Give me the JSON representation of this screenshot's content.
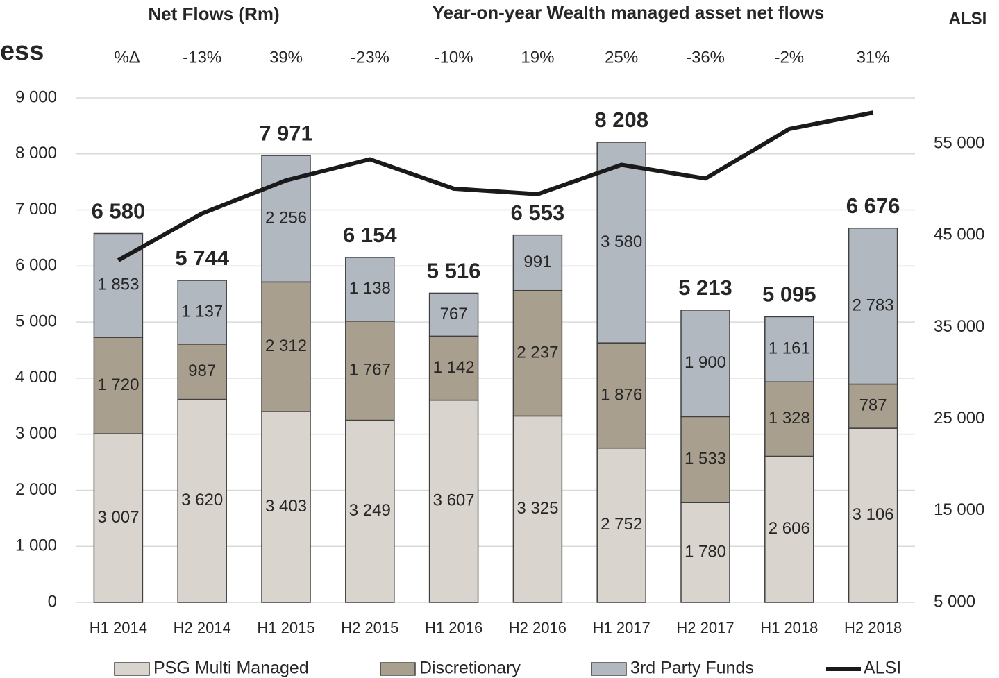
{
  "chart_data": {
    "type": "stacked_bar_line",
    "cut_text": "ess",
    "title_left": "Net Flows (Rm)",
    "title": "Year-on-year Wealth managed asset net flows",
    "y2_title": "ALSI",
    "yoy_label": "%Δ",
    "yoy_change": [
      null,
      -13,
      39,
      -23,
      -10,
      19,
      25,
      -36,
      -2,
      31
    ],
    "yoy_change_labels": [
      null,
      "-13%",
      "39%",
      "-23%",
      "-10%",
      "19%",
      "25%",
      "-36%",
      "-2%",
      "31%"
    ],
    "negative_color": "#ff0000",
    "categories": [
      "H1 2014",
      "H2 2014",
      "H1 2015",
      "H2 2015",
      "H1 2016",
      "H2 2016",
      "H1 2017",
      "H2 2017",
      "H1 2018",
      "H2 2018"
    ],
    "series": [
      {
        "name": "PSG Multi Managed",
        "color": "#d9d5ce",
        "label_color": "#404040",
        "values": [
          3007,
          3620,
          3403,
          3249,
          3607,
          3325,
          2752,
          1780,
          2606,
          3106
        ],
        "value_labels": [
          "3 007",
          "3 620",
          "3 403",
          "3 249",
          "3 607",
          "3 325",
          "2 752",
          "1 780",
          "2 606",
          "3 106"
        ]
      },
      {
        "name": "Discretionary",
        "color": "#a89f8e",
        "label_color": "#ffffff",
        "values": [
          1720,
          987,
          2312,
          1767,
          1142,
          2237,
          1876,
          1533,
          1328,
          787
        ],
        "value_labels": [
          "1 720",
          "987",
          "2 312",
          "1 767",
          "1 142",
          "2 237",
          "1 876",
          "1 533",
          "1 328",
          "787"
        ]
      },
      {
        "name": "3rd Party Funds",
        "color": "#b1b8c0",
        "label_color": "#ffffff",
        "values": [
          1853,
          1137,
          2256,
          1138,
          767,
          991,
          3580,
          1900,
          1161,
          2783
        ],
        "value_labels": [
          "1 853",
          "1 137",
          "2 256",
          "1 138",
          "767",
          "991",
          "3 580",
          "1 900",
          "1 161",
          "2 783"
        ]
      },
      {
        "name": "ALSI",
        "color": "#1a1a1a",
        "type": "line",
        "axis": "y2",
        "values": [
          42300,
          47400,
          51000,
          53300,
          50100,
          49500,
          52700,
          51200,
          56600,
          58400
        ]
      }
    ],
    "totals": [
      6580,
      5744,
      7971,
      6154,
      5516,
      6553,
      8208,
      5213,
      5095,
      6676
    ],
    "totals_labels": [
      "6 580",
      "5 744",
      "7 971",
      "6 154",
      "5 516",
      "6 553",
      "8 208",
      "5 213",
      "5 095",
      "6 676"
    ],
    "ylim": [
      0,
      9000
    ],
    "yticks": [
      0,
      {
        "value": 1000,
        "label": "1 000"
      },
      {
        "value": 2000,
        "label": "2 000"
      },
      {
        "value": 3000,
        "label": "3 000"
      },
      {
        "value": 4000,
        "label": "4 000"
      },
      {
        "value": 5000,
        "label": "5 000"
      },
      {
        "value": 6000,
        "label": "6 000"
      },
      {
        "value": 7000,
        "label": "7 000"
      },
      {
        "value": 8000,
        "label": "8 000"
      },
      {
        "value": 9000,
        "label": "9 000"
      }
    ],
    "y2lim": [
      5000,
      60000
    ],
    "y2ticks": [
      {
        "value": 5000,
        "label": "5 000"
      },
      {
        "value": 15000,
        "label": "15 000"
      },
      {
        "value": 25000,
        "label": "25 000"
      },
      {
        "value": 35000,
        "label": "35 000"
      },
      {
        "value": 45000,
        "label": "45 000"
      },
      {
        "value": 55000,
        "label": "55 000"
      }
    ],
    "grid": true
  }
}
